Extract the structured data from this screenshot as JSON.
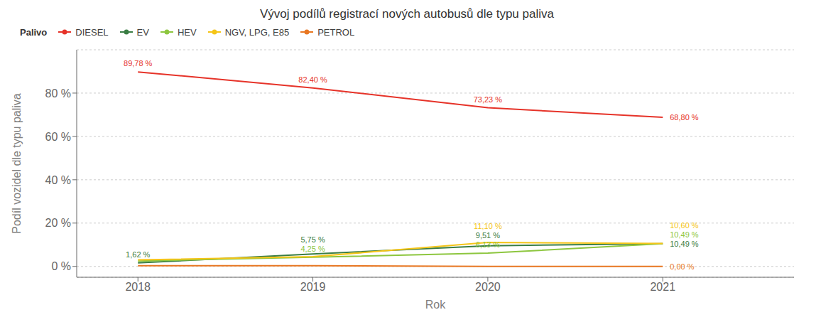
{
  "chart_data": {
    "type": "line",
    "title": "Vývoj podílů registrací nových autobusů dle typu paliva",
    "xlabel": "Rok",
    "ylabel": "Podíl vozidel dle typu paliva",
    "legend_title": "Palivo",
    "legend": "top",
    "grid": true,
    "x": [
      2018,
      2019,
      2020,
      2021
    ],
    "xlim": [
      2017.65,
      2021.75
    ],
    "xticks": [
      2018,
      2019,
      2020,
      2021
    ],
    "ylim": [
      -5,
      100
    ],
    "yticks": [
      {
        "value": 0,
        "label": "0 %"
      },
      {
        "value": 20,
        "label": "20 %"
      },
      {
        "value": 40,
        "label": "40 %"
      },
      {
        "value": 60,
        "label": "60 %"
      },
      {
        "value": 80,
        "label": "80 %"
      }
    ],
    "series": [
      {
        "name": "DIESEL",
        "color": "#e63329",
        "values": [
          89.78,
          82.4,
          73.23,
          68.8
        ]
      },
      {
        "name": "EV",
        "color": "#3a7d44",
        "values": [
          1.62,
          5.75,
          9.51,
          10.49
        ]
      },
      {
        "name": "HEV",
        "color": "#8dc63f",
        "values": [
          2.5,
          4.25,
          6.13,
          10.49
        ]
      },
      {
        "name": "NGV, LPG, E85",
        "color": "#f5c518",
        "values": [
          3.0,
          4.5,
          11.1,
          10.6
        ]
      },
      {
        "name": "PETROL",
        "color": "#e87722",
        "values": [
          0.3,
          0.3,
          0.0,
          0.0
        ]
      }
    ],
    "annotations": [
      {
        "series": "DIESEL",
        "x": 2018,
        "label": "89,78 %"
      },
      {
        "series": "DIESEL",
        "x": 2019,
        "label": "82,40 %"
      },
      {
        "series": "DIESEL",
        "x": 2020,
        "label": "73,23 %"
      },
      {
        "series": "DIESEL",
        "x": 2021,
        "label": "68,80 %"
      },
      {
        "series": "EV",
        "x": 2018,
        "label": "1,62 %"
      },
      {
        "series": "EV",
        "x": 2019,
        "label": "5,75 %"
      },
      {
        "series": "EV",
        "x": 2020,
        "label": "9,51 %"
      },
      {
        "series": "EV",
        "x": 2021,
        "label": "10,49 %"
      },
      {
        "series": "HEV",
        "x": 2019,
        "label": "4,25 %"
      },
      {
        "series": "HEV",
        "x": 2020,
        "label": "6,13 %"
      },
      {
        "series": "HEV",
        "x": 2021,
        "label": "10,49 %"
      },
      {
        "series": "NGV, LPG, E85",
        "x": 2020,
        "label": "11,10 %"
      },
      {
        "series": "NGV, LPG, E85",
        "x": 2021,
        "label": "10,60 %"
      },
      {
        "series": "PETROL",
        "x": 2021,
        "label": "0,00 %"
      }
    ]
  }
}
